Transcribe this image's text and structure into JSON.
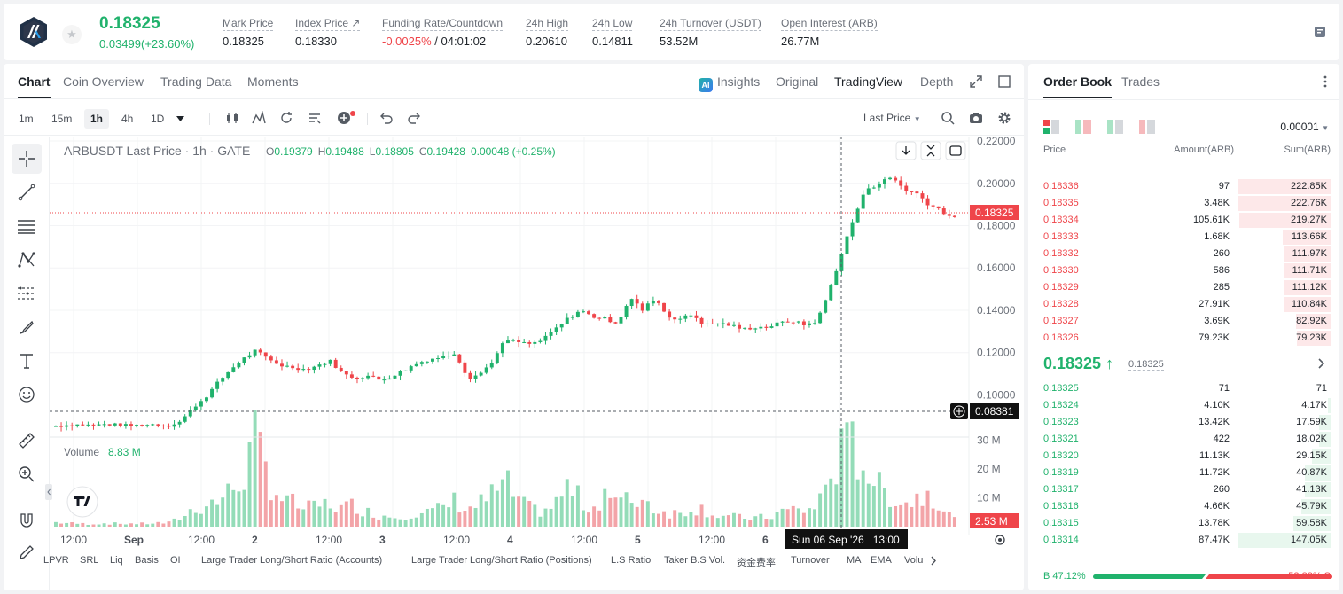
{
  "header": {
    "last_price": "0.18325",
    "change": "0.03499(+23.60%)",
    "stats": [
      {
        "label": "Mark Price",
        "value": "0.18325"
      },
      {
        "label": "Index Price ↗",
        "value": "0.18330"
      },
      {
        "label": "Funding Rate/Countdown",
        "value_neg": "-0.0025%",
        "value": " / 04:01:02"
      },
      {
        "label": "24h High",
        "value": "0.20610"
      },
      {
        "label": "24h Low",
        "value": "0.14811"
      },
      {
        "label": "24h Turnover (USDT)",
        "value": "53.52M"
      },
      {
        "label": "Open Interest (ARB)",
        "value": "26.77M"
      }
    ]
  },
  "chart_tabs": [
    "Chart",
    "Coin Overview",
    "Trading Data",
    "Moments"
  ],
  "view_tabs": {
    "insights": "Insights",
    "original": "Original",
    "tradingview": "TradingView",
    "depth": "Depth",
    "ai_badge": "AI"
  },
  "toolbar": {
    "timeframes": [
      "1m",
      "15m",
      "1h",
      "4h",
      "1D"
    ],
    "active_timeframe": "1h",
    "price_type": "Last Price"
  },
  "chart_legend": {
    "symbol": "ARBUSDT Last Price · 1h · GATE",
    "o_label": "O",
    "o": "0.19379",
    "h_label": "H",
    "h": "0.19488",
    "l_label": "L",
    "l": "0.18805",
    "c_label": "C",
    "c": "0.19428",
    "chg": "0.00048 (+0.25%)",
    "volume_label": "Volume",
    "volume_value": "8.83 M"
  },
  "chart_data": {
    "type": "candlestick",
    "price_axis": {
      "ticks": [
        "0.22000",
        "0.20000",
        "0.18000",
        "0.16000",
        "0.14000",
        "0.12000",
        "0.10000"
      ],
      "range": [
        0.0805,
        0.2221
      ]
    },
    "volume_axis": {
      "ticks": [
        "30 M",
        "20 M",
        "10 M"
      ],
      "range": [
        0,
        31
      ]
    },
    "time_ticks": [
      "12:00",
      "Sep",
      "12:00",
      "2",
      "12:00",
      "3",
      "12:00",
      "4",
      "12:00",
      "5",
      "12:00",
      "6",
      "12:00"
    ],
    "last_price": "0.18325",
    "cursor_price": "0.08381",
    "cursor_time": "Sun 06 Sep '26   13:00",
    "last_volume": "2.53 M",
    "anchors": [
      [
        0.0853,
        1.5
      ],
      [
        0.0858,
        1.2
      ],
      [
        0.086,
        1.0
      ],
      [
        0.0856,
        1.0
      ],
      [
        0.0862,
        1.2
      ],
      [
        0.0858,
        1.0
      ],
      [
        0.0855,
        1.1
      ],
      [
        0.0858,
        1.0
      ],
      [
        0.0862,
        1.3
      ],
      [
        0.0855,
        1.2
      ],
      [
        0.0875,
        3.0
      ],
      [
        0.094,
        6.0
      ],
      [
        0.099,
        7.5
      ],
      [
        0.106,
        9.0
      ],
      [
        0.112,
        12.0
      ],
      [
        0.117,
        18.0
      ],
      [
        0.121,
        29.0
      ],
      [
        0.117,
        18.0
      ],
      [
        0.114,
        10.0
      ],
      [
        0.113,
        8.0
      ],
      [
        0.112,
        6.0
      ],
      [
        0.114,
        7.0
      ],
      [
        0.116,
        8.0
      ],
      [
        0.11,
        6.0
      ],
      [
        0.108,
        8.0
      ],
      [
        0.109,
        5.0
      ],
      [
        0.107,
        4.0
      ],
      [
        0.109,
        3.5
      ],
      [
        0.112,
        4.0
      ],
      [
        0.115,
        5.0
      ],
      [
        0.117,
        5.0
      ],
      [
        0.118,
        6.5
      ],
      [
        0.12,
        9.0
      ],
      [
        0.108,
        6.0
      ],
      [
        0.11,
        8.0
      ],
      [
        0.116,
        11.0
      ],
      [
        0.126,
        15.0
      ],
      [
        0.125,
        9.0
      ],
      [
        0.124,
        6.0
      ],
      [
        0.126,
        5.5
      ],
      [
        0.131,
        7.5
      ],
      [
        0.136,
        14.0
      ],
      [
        0.14,
        9.0
      ],
      [
        0.137,
        6.0
      ],
      [
        0.136,
        13.0
      ],
      [
        0.134,
        8.0
      ],
      [
        0.146,
        9.0
      ],
      [
        0.14,
        10.0
      ],
      [
        0.146,
        6.0
      ],
      [
        0.137,
        5.0
      ],
      [
        0.136,
        4.5
      ],
      [
        0.138,
        7.0
      ],
      [
        0.133,
        6.0
      ],
      [
        0.134,
        4.0
      ],
      [
        0.133,
        3.5
      ],
      [
        0.131,
        3.0
      ],
      [
        0.132,
        3.0
      ],
      [
        0.132,
        3.2
      ],
      [
        0.134,
        5.0
      ],
      [
        0.135,
        6.0
      ],
      [
        0.133,
        5.5
      ],
      [
        0.135,
        7.0
      ],
      [
        0.15,
        18.0
      ],
      [
        0.168,
        25.0
      ],
      [
        0.185,
        28.0
      ],
      [
        0.198,
        20.0
      ],
      [
        0.2,
        13.0
      ],
      [
        0.203,
        11.0
      ],
      [
        0.197,
        8.0
      ],
      [
        0.195,
        10.0
      ],
      [
        0.19,
        13.0
      ],
      [
        0.187,
        7.0
      ],
      [
        0.183,
        2.5
      ]
    ]
  },
  "drawing_tools": [
    "crosshair-tool",
    "trendline-tool",
    "fib-tool",
    "pattern-tool",
    "measure-lines-tool",
    "brush-tool",
    "text-tool",
    "emoji-tool",
    "ruler-tool",
    "zoom-in-tool",
    "magnet-tool",
    "pencil-tool"
  ],
  "bottom_tabs": [
    "LPVR",
    "SRL",
    "Liq",
    "Basis",
    "OI",
    "Large Trader Long/Short Ratio (Accounts)",
    "Large Trader Long/Short Ratio (Positions)",
    "L.S Ratio",
    "Taker B.S Vol.",
    "资金费率",
    "Turnover",
    "MA",
    "EMA",
    "Volu"
  ],
  "order_book": {
    "tabs": [
      "Order Book",
      "Trades"
    ],
    "precision": "0.00001",
    "headers": {
      "price": "Price",
      "amount": "Amount(ARB)",
      "sum": "Sum(ARB)"
    },
    "asks": [
      {
        "price": "0.18336",
        "amount": "97",
        "sum": "222.85K",
        "depth": 1.0
      },
      {
        "price": "0.18335",
        "amount": "3.48K",
        "sum": "222.76K",
        "depth": 1.0
      },
      {
        "price": "0.18334",
        "amount": "105.61K",
        "sum": "219.27K",
        "depth": 0.98
      },
      {
        "price": "0.18333",
        "amount": "1.68K",
        "sum": "113.66K",
        "depth": 0.51
      },
      {
        "price": "0.18332",
        "amount": "260",
        "sum": "111.97K",
        "depth": 0.5
      },
      {
        "price": "0.18330",
        "amount": "586",
        "sum": "111.71K",
        "depth": 0.5
      },
      {
        "price": "0.18329",
        "amount": "285",
        "sum": "111.12K",
        "depth": 0.5
      },
      {
        "price": "0.18328",
        "amount": "27.91K",
        "sum": "110.84K",
        "depth": 0.5
      },
      {
        "price": "0.18327",
        "amount": "3.69K",
        "sum": "82.92K",
        "depth": 0.37
      },
      {
        "price": "0.18326",
        "amount": "79.23K",
        "sum": "79.23K",
        "depth": 0.36
      }
    ],
    "mid_price": "0.18325 ↑",
    "mid_mark": "0.18325",
    "bids": [
      {
        "price": "0.18325",
        "amount": "71",
        "sum": "71",
        "depth": 0.0
      },
      {
        "price": "0.18324",
        "amount": "4.10K",
        "sum": "4.17K",
        "depth": 0.03
      },
      {
        "price": "0.18323",
        "amount": "13.42K",
        "sum": "17.59K",
        "depth": 0.12
      },
      {
        "price": "0.18321",
        "amount": "422",
        "sum": "18.02K",
        "depth": 0.12
      },
      {
        "price": "0.18320",
        "amount": "11.13K",
        "sum": "29.15K",
        "depth": 0.2
      },
      {
        "price": "0.18319",
        "amount": "11.72K",
        "sum": "40.87K",
        "depth": 0.28
      },
      {
        "price": "0.18317",
        "amount": "260",
        "sum": "41.13K",
        "depth": 0.28
      },
      {
        "price": "0.18316",
        "amount": "4.66K",
        "sum": "45.79K",
        "depth": 0.31
      },
      {
        "price": "0.18315",
        "amount": "13.78K",
        "sum": "59.58K",
        "depth": 0.4
      },
      {
        "price": "0.18314",
        "amount": "87.47K",
        "sum": "147.05K",
        "depth": 1.0
      }
    ],
    "buy_ratio": "B 47.12%",
    "sell_ratio": "52.88% S",
    "buy_fraction": 0.4712
  },
  "colors": {
    "up": "#20b26c",
    "down": "#ef454a",
    "up_vol": "#94dcb8",
    "down_vol": "#f3a4a8",
    "accent_text": "#1e2329"
  }
}
